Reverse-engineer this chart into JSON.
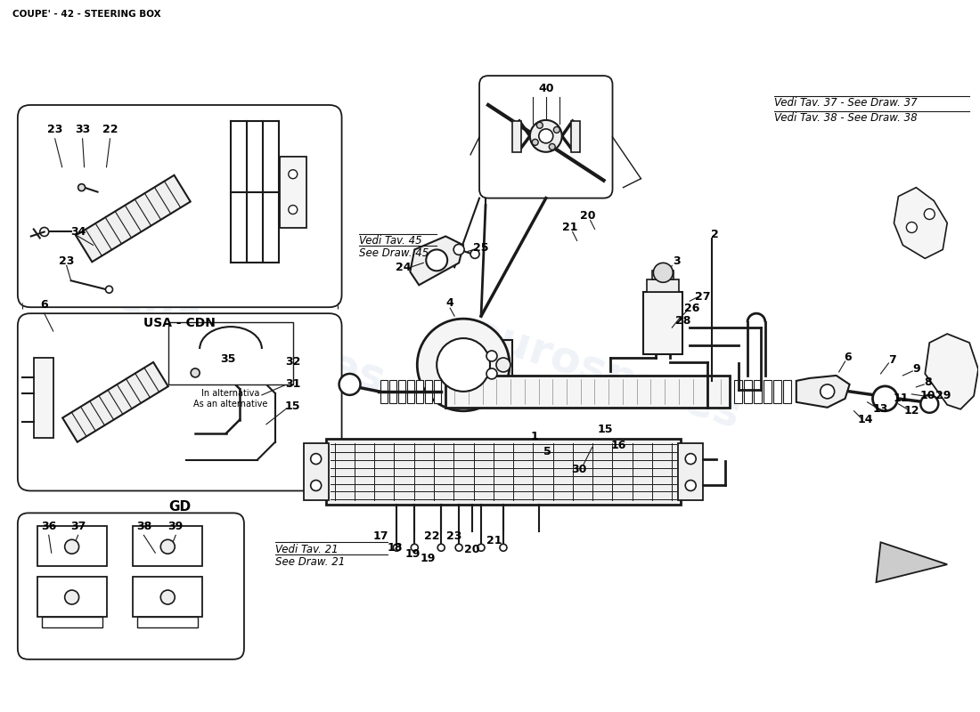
{
  "title": "COUPE' - 42 - STEERING BOX",
  "bg": "#ffffff",
  "lc": "#1a1a1a",
  "tc": "#000000",
  "wm_color": "#c8d4e8",
  "wm_alpha": 0.28,
  "annotations": {
    "vedi_37": "Vedi Tav. 37 - See Draw. 37",
    "vedi_38": "Vedi Tav. 38 - See Draw. 38",
    "vedi_45_1": "Vedi Tav. 45",
    "vedi_45_2": "See Draw. 45",
    "vedi_21_1": "Vedi Tav. 21",
    "vedi_21_2": "See Draw. 21",
    "in_alt_1": "In alternativa",
    "in_alt_2": "As an alternative",
    "usa_cdn": "USA - CDN",
    "gd_label": "GD"
  }
}
